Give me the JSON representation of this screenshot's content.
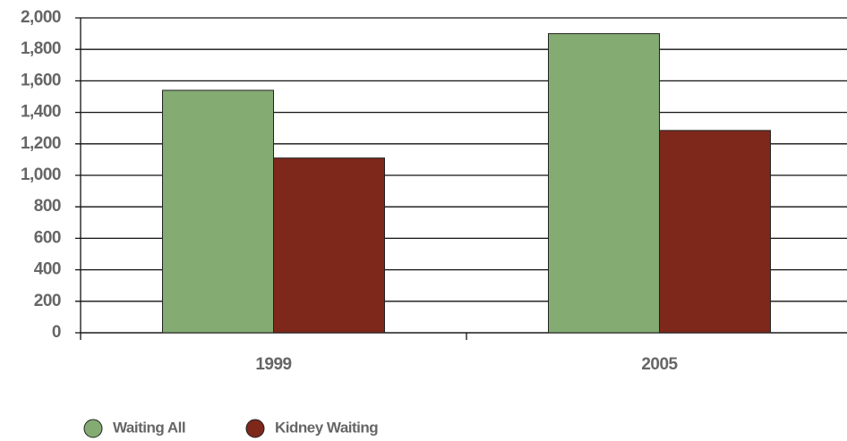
{
  "chart_data": {
    "type": "bar",
    "categories": [
      "1999",
      "2005"
    ],
    "series": [
      {
        "name": "Waiting All",
        "color": "#84ab72",
        "values": [
          1540,
          1900
        ]
      },
      {
        "name": "Kidney Waiting",
        "color": "#7d281b",
        "values": [
          1110,
          1285
        ]
      }
    ],
    "ylim": [
      0,
      2000
    ],
    "yticks": [
      0,
      200,
      400,
      600,
      800,
      {
        "value": 1000,
        "label": "1,000"
      },
      {
        "value": 1200,
        "label": "1,200"
      },
      {
        "value": 1400,
        "label": "1,400"
      },
      {
        "value": 1600,
        "label": "1,600"
      },
      {
        "value": 1800,
        "label": "1,800"
      },
      {
        "value": 2000,
        "label": "2,000"
      }
    ],
    "grid": true,
    "legend": "bottom"
  }
}
